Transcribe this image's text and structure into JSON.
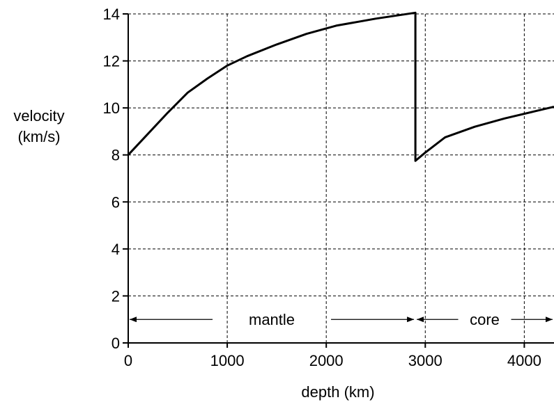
{
  "chart_data": {
    "type": "line",
    "title": "",
    "xlabel": "depth (km)",
    "ylabel": [
      "velocity",
      "(km/s)"
    ],
    "xlim": [
      0,
      4300
    ],
    "ylim": [
      0,
      14
    ],
    "xticks": [
      0,
      1000,
      2000,
      3000,
      4000
    ],
    "yticks": [
      0,
      2,
      4,
      6,
      8,
      10,
      12,
      14
    ],
    "grid": true,
    "series": [
      {
        "values": [
          [
            0,
            8.0
          ],
          [
            200,
            8.9
          ],
          [
            400,
            9.8
          ],
          [
            600,
            10.65
          ],
          [
            800,
            11.25
          ],
          [
            1000,
            11.8
          ],
          [
            1200,
            12.2
          ],
          [
            1500,
            12.7
          ],
          [
            1800,
            13.15
          ],
          [
            2100,
            13.5
          ],
          [
            2500,
            13.8
          ],
          [
            2900,
            14.05
          ],
          [
            2900,
            7.75
          ],
          [
            3000,
            8.1
          ],
          [
            3200,
            8.75
          ],
          [
            3500,
            9.2
          ],
          [
            3800,
            9.55
          ],
          [
            4100,
            9.85
          ],
          [
            4300,
            10.05
          ]
        ]
      }
    ],
    "annotations": [
      {
        "label": "mantle",
        "from": 0,
        "to": 2900,
        "y": 1
      },
      {
        "label": "core",
        "from": 2900,
        "to": 4300,
        "y": 1
      }
    ]
  }
}
